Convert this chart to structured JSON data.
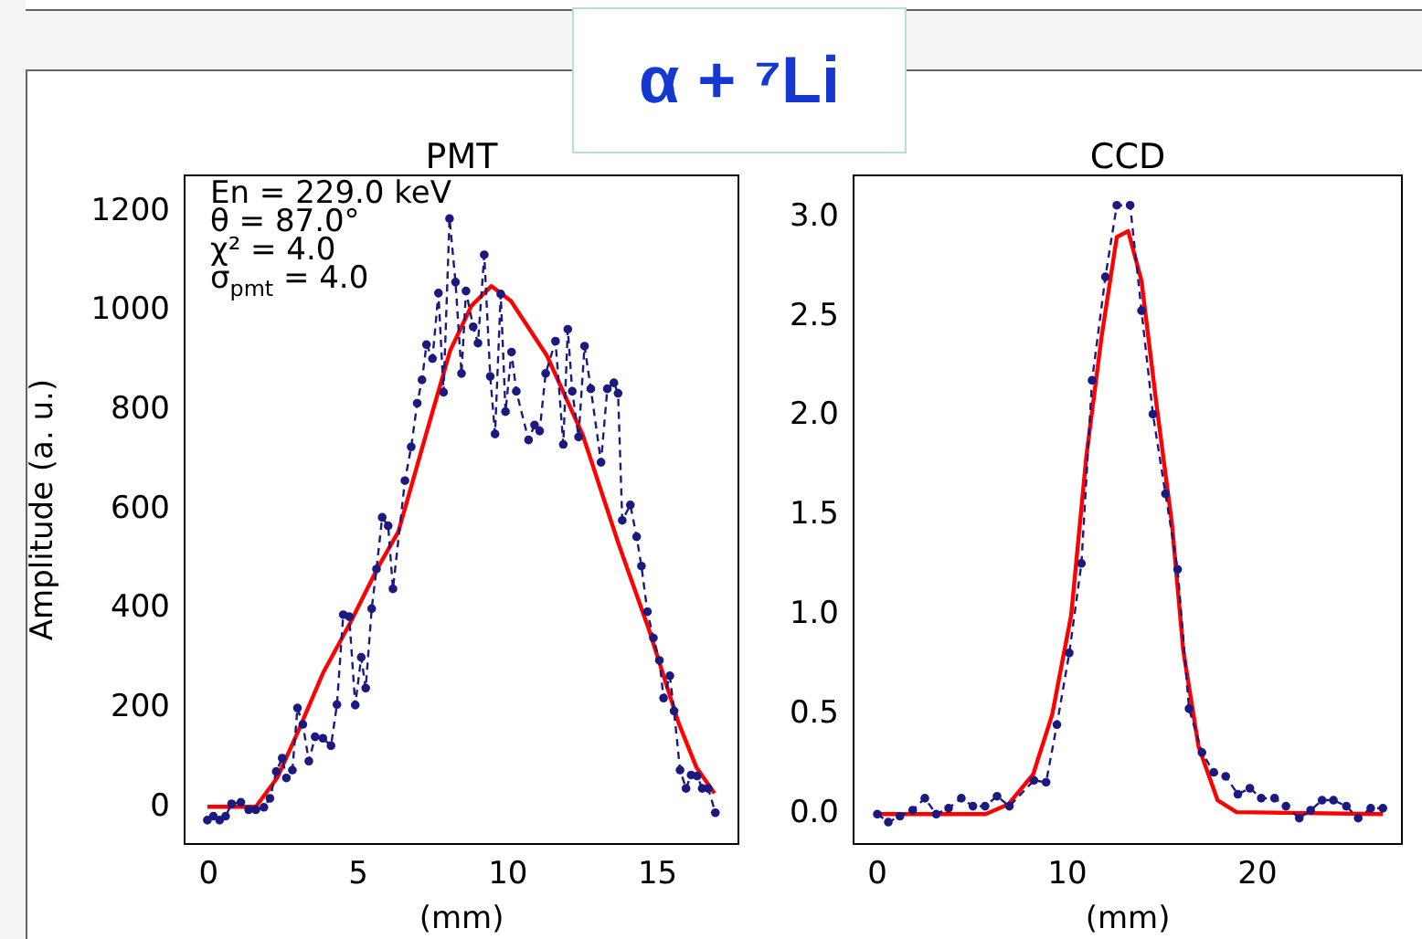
{
  "chart_data": [
    {
      "type": "other",
      "title": "α + ⁷Li"
    },
    {
      "type": "line",
      "title": "PMT",
      "xlabel": "(mm)",
      "ylabel": "Amplitude (a. u.)",
      "xlim": [
        -0.8,
        17.7
      ],
      "ylim": [
        -74,
        1273
      ],
      "xticks": [
        0,
        5,
        10,
        15
      ],
      "yticks": [
        0,
        200,
        400,
        600,
        800,
        1000,
        1200
      ],
      "grid": false,
      "legend": false,
      "annotations": [
        "En = 229.0 keV",
        "θ = 87.0°",
        "χ² = 4.0",
        "σ$_{pmt}$ = 4.0"
      ],
      "series": [
        {
          "color": "#1a1a80",
          "marker": "circle",
          "line_style": "dashed",
          "x": [
            -0.04,
            0.16,
            0.37,
            0.57,
            0.77,
            1.08,
            1.34,
            1.58,
            1.85,
            2.05,
            2.26,
            2.46,
            2.6,
            2.8,
            2.97,
            3.15,
            3.35,
            3.56,
            3.82,
            4.09,
            4.29,
            4.5,
            4.7,
            4.9,
            5.1,
            5.25,
            5.45,
            5.61,
            5.8,
            6.0,
            6.16,
            6.56,
            6.77,
            6.97,
            7.13,
            7.28,
            7.48,
            7.68,
            7.85,
            8.05,
            8.25,
            8.45,
            8.6,
            8.84,
            9.0,
            9.21,
            9.41,
            9.57,
            9.76,
            9.92,
            10.12,
            10.28,
            10.69,
            10.89,
            11.06,
            11.26,
            11.59,
            11.85,
            12.0,
            12.15,
            12.36,
            12.56,
            12.77,
            13.11,
            13.32,
            13.54,
            13.68,
            13.82,
            14.09,
            14.3,
            14.46,
            14.66,
            14.86,
            15.06,
            15.2,
            15.41,
            15.55,
            15.75,
            15.95,
            16.12,
            16.32,
            16.49,
            16.69,
            16.93
          ],
          "values": [
            -26,
            -18,
            -26,
            -18,
            7,
            10,
            -5,
            -5,
            0,
            18,
            72,
            99,
            59,
            75,
            200,
            167,
            93,
            142,
            139,
            124,
            207,
            388,
            384,
            206,
            302,
            240,
            400,
            480,
            584,
            567,
            440,
            658,
            726,
            814,
            861,
            932,
            904,
            1036,
            836,
            1186,
            1058,
            874,
            1040,
            968,
            935,
            1113,
            868,
            752,
            1034,
            797,
            917,
            838,
            740,
            770,
            758,
            874,
            939,
            731,
            963,
            838,
            746,
            929,
            843,
            695,
            843,
            855,
            834,
            578,
            609,
            545,
            486,
            394,
            341,
            296,
            220,
            265,
            194,
            75,
            38,
            65,
            63,
            38,
            38,
            -11
          ]
        },
        {
          "color": "#ff0000",
          "marker": "none",
          "line_style": "solid",
          "x": [
            -0.04,
            1.58,
            2.3,
            3.0,
            3.82,
            4.72,
            5.63,
            6.34,
            7.26,
            8.07,
            8.78,
            9.45,
            10.1,
            11.3,
            12.5,
            13.7,
            14.7,
            15.7,
            16.3,
            16.9
          ],
          "values": [
            1,
            1,
            60,
            154,
            270,
            370,
            480,
            555,
            750,
            920,
            1010,
            1050,
            1020,
            910,
            750,
            530,
            360,
            170,
            80,
            28
          ]
        }
      ]
    },
    {
      "type": "line",
      "title": "CCD",
      "xlabel": "(mm)",
      "xlim": [
        -1.25,
        27.6
      ],
      "ylim": [
        -0.15,
        3.21
      ],
      "xticks": [
        0,
        10,
        20
      ],
      "yticks": [
        {
          "value": 0,
          "label": "0.0"
        },
        0.5,
        {
          "value": 1,
          "label": "1.0"
        },
        1.5,
        {
          "value": 2,
          "label": "2.0"
        },
        2.5,
        {
          "value": 3,
          "label": "3.0"
        }
      ],
      "grid": false,
      "legend": false,
      "series": [
        {
          "color": "#1a1a80",
          "marker": "circle",
          "line_style": "dashed",
          "x": [
            0,
            0.58,
            1.19,
            1.86,
            2.5,
            3.1,
            3.75,
            4.42,
            5.03,
            5.67,
            6.3,
            6.95,
            8.24,
            8.88,
            9.45,
            10.1,
            10.74,
            11.3,
            12.0,
            12.6,
            13.3,
            13.9,
            14.5,
            15.16,
            15.8,
            16.4,
            17.08,
            17.7,
            18.33,
            18.97,
            19.6,
            20.2,
            20.9,
            21.5,
            22.2,
            22.8,
            23.4,
            24.0,
            24.68,
            25.3,
            25.96,
            26.6
          ],
          "values": [
            0,
            -0.04,
            -0.01,
            0.02,
            0.08,
            0,
            0.03,
            0.08,
            0.04,
            0.04,
            0.09,
            0.04,
            0.17,
            0.16,
            0.45,
            0.81,
            1.26,
            2.18,
            2.7,
            3.06,
            3.06,
            2.53,
            2.01,
            1.61,
            1.23,
            0.53,
            0.31,
            0.21,
            0.19,
            0.1,
            0.13,
            0.08,
            0.08,
            0.04,
            -0.02,
            0.02,
            0.07,
            0.07,
            0.04,
            -0.02,
            0.03,
            0.03
          ]
        },
        {
          "color": "#ff0000",
          "marker": "none",
          "line_style": "solid",
          "x": [
            0,
            5.7,
            6.9,
            8.2,
            9.2,
            10.2,
            11.0,
            11.8,
            12.6,
            13.2,
            13.9,
            14.7,
            15.5,
            16.1,
            16.9,
            17.9,
            18.9,
            26.6
          ],
          "values": [
            0,
            0,
            0.05,
            0.2,
            0.5,
            1.0,
            1.8,
            2.4,
            2.9,
            2.93,
            2.68,
            2.05,
            1.46,
            0.82,
            0.34,
            0.07,
            0.01,
            0
          ]
        }
      ]
    }
  ]
}
